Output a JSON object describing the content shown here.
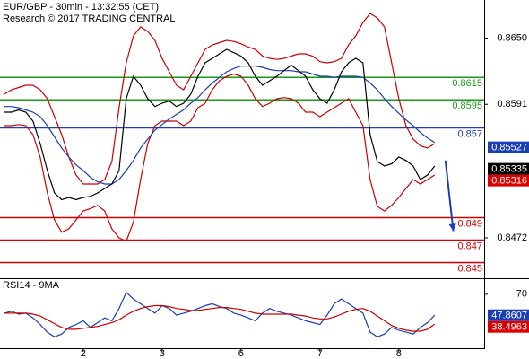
{
  "chart_data": [
    {
      "type": "line",
      "title": "EUR/GBP - 30min - 13:32:55 (CET)",
      "subtitle": "Research © 2017 TRADING CENTRAL",
      "x": [
        0,
        1,
        2,
        3,
        4,
        5,
        6,
        7,
        8,
        9,
        10,
        11,
        12,
        13,
        14,
        15,
        16,
        17,
        18,
        19,
        20,
        21,
        22,
        23,
        24,
        25,
        26,
        27,
        28,
        29,
        30,
        31,
        32,
        33,
        34,
        35,
        36,
        37,
        38,
        39,
        40,
        41,
        42,
        43,
        44,
        45,
        46,
        47,
        48,
        49,
        50,
        51,
        52,
        53,
        54,
        55,
        56,
        57,
        58,
        59,
        60
      ],
      "xlim": [
        -0.6,
        66.9
      ],
      "xticks": [
        {
          "value": 11,
          "label": "2"
        },
        {
          "value": 22,
          "label": "3"
        },
        {
          "value": 33,
          "label": "6"
        },
        {
          "value": 44,
          "label": "7"
        },
        {
          "value": 55,
          "label": "8"
        }
      ],
      "ylim": [
        0.8436,
        0.8684
      ],
      "yticks": [
        {
          "value": 0.865,
          "label": "0.8650"
        },
        0.8591,
        0.8472
      ],
      "series": [
        {
          "color": "#cc0000",
          "values": [
            0.86,
            0.8604,
            0.8606,
            0.8608,
            0.8608,
            0.8604,
            0.8596,
            0.858,
            0.8564,
            0.8544,
            0.8528,
            0.852,
            0.852,
            0.852,
            0.8524,
            0.854,
            0.8588,
            0.8628,
            0.8652,
            0.866,
            0.8656,
            0.8648,
            0.8632,
            0.862,
            0.8608,
            0.8604,
            0.8616,
            0.8628,
            0.864,
            0.8644,
            0.8646,
            0.8648,
            0.8647,
            0.8645,
            0.8642,
            0.864,
            0.8634,
            0.8632,
            0.8631,
            0.8632,
            0.8634,
            0.8636,
            0.8636,
            0.8634,
            0.8629,
            0.8628,
            0.8629,
            0.8632,
            0.8644,
            0.8652,
            0.8664,
            0.8672,
            0.8668,
            0.866,
            0.8628,
            0.8596,
            0.8572,
            0.856,
            0.8554,
            0.8552,
            0.8556
          ]
        },
        {
          "color": "#cc0000",
          "values": [
            0.8572,
            0.8572,
            0.8573,
            0.8572,
            0.8564,
            0.8544,
            0.8512,
            0.8488,
            0.8477,
            0.848,
            0.8488,
            0.8496,
            0.8498,
            0.8501,
            0.8496,
            0.848,
            0.8472,
            0.8469,
            0.8486,
            0.8524,
            0.8556,
            0.8572,
            0.8576,
            0.8576,
            0.8576,
            0.8572,
            0.8576,
            0.8588,
            0.8592,
            0.8604,
            0.8612,
            0.8616,
            0.8618,
            0.8616,
            0.8608,
            0.8596,
            0.8589,
            0.8592,
            0.8596,
            0.8597,
            0.8596,
            0.8592,
            0.8584,
            0.8584,
            0.858,
            0.8584,
            0.8588,
            0.8592,
            0.8596,
            0.8584,
            0.8572,
            0.8524,
            0.85,
            0.8496,
            0.8501,
            0.8508,
            0.8516,
            0.8524,
            0.852,
            0.8524,
            0.8528
          ]
        },
        {
          "color": "#1a3fb5",
          "values": [
            0.8589,
            0.8589,
            0.8588,
            0.8586,
            0.8584,
            0.858,
            0.8572,
            0.8562,
            0.8552,
            0.8544,
            0.8537,
            0.8532,
            0.8526,
            0.8522,
            0.852,
            0.852,
            0.8524,
            0.8532,
            0.8541,
            0.8552,
            0.856,
            0.8568,
            0.8573,
            0.8578,
            0.8582,
            0.8586,
            0.8592,
            0.8597,
            0.8604,
            0.861,
            0.8615,
            0.862,
            0.8623,
            0.8625,
            0.8625,
            0.8625,
            0.8624,
            0.8622,
            0.8621,
            0.8621,
            0.8621,
            0.862,
            0.862,
            0.8618,
            0.8616,
            0.8616,
            0.8615,
            0.8616,
            0.8616,
            0.8616,
            0.8615,
            0.861,
            0.8604,
            0.8596,
            0.8589,
            0.8583,
            0.8577,
            0.8572,
            0.8566,
            0.8561,
            0.8557
          ]
        },
        {
          "color": "#000000",
          "values": [
            0.8584,
            0.8584,
            0.8586,
            0.8584,
            0.8576,
            0.8556,
            0.8532,
            0.8512,
            0.8506,
            0.8508,
            0.8506,
            0.8508,
            0.8509,
            0.8512,
            0.8516,
            0.852,
            0.8532,
            0.8596,
            0.8616,
            0.8608,
            0.8596,
            0.8589,
            0.8592,
            0.8594,
            0.8589,
            0.8592,
            0.86,
            0.8616,
            0.8628,
            0.8632,
            0.8636,
            0.864,
            0.8637,
            0.8634,
            0.8628,
            0.8616,
            0.8608,
            0.8612,
            0.8616,
            0.8621,
            0.8626,
            0.8621,
            0.8616,
            0.8604,
            0.8596,
            0.8592,
            0.8604,
            0.862,
            0.8628,
            0.8632,
            0.8628,
            0.8564,
            0.854,
            0.8536,
            0.8538,
            0.8544,
            0.8541,
            0.8536,
            0.8524,
            0.8528,
            0.8536
          ]
        }
      ],
      "levels": [
        {
          "value": 0.8615,
          "color": "#1a9a1a"
        },
        {
          "value": 0.8595,
          "color": "#1a9a1a"
        },
        {
          "value": 0.857,
          "color": "#1a3fb5"
        },
        {
          "value": 0.849,
          "color": "#dd0000"
        },
        {
          "value": 0.847,
          "color": "#dd0000"
        },
        {
          "value": 0.845,
          "color": "#dd0000"
        }
      ],
      "badges": [
        {
          "value": 0.85527,
          "color": "#1a3fb5"
        },
        {
          "value": 0.85335,
          "color": "#000000"
        },
        {
          "value": 0.85316,
          "color": "#dd0000"
        }
      ],
      "arrow": {
        "color": "#1a3fb5",
        "x": [
          61.5,
          62.6
        ],
        "values": [
          0.8541,
          0.8478
        ]
      }
    },
    {
      "type": "line",
      "title": "RSI14 - 9MA",
      "ylim": [
        13,
        85
      ],
      "yticks": [
        70
      ],
      "series": [
        {
          "color": "#1a3fb5",
          "values": [
            50,
            52,
            49,
            50,
            45,
            38,
            30,
            25,
            28,
            35,
            38,
            42,
            35,
            40,
            45,
            42,
            55,
            72,
            65,
            60,
            55,
            50,
            58,
            55,
            48,
            50,
            52,
            55,
            58,
            60,
            57,
            55,
            50,
            48,
            45,
            42,
            50,
            55,
            52,
            50,
            48,
            45,
            42,
            40,
            38,
            48,
            60,
            65,
            60,
            55,
            50,
            30,
            25,
            28,
            35,
            32,
            30,
            28,
            35,
            40,
            47.8607
          ]
        },
        {
          "color": "#cc0000",
          "values": [
            50,
            50,
            50,
            50,
            49,
            47,
            43,
            39,
            35,
            33,
            33,
            34,
            35,
            36,
            38,
            40,
            43,
            48,
            52,
            55,
            57,
            58,
            58,
            57,
            55,
            54,
            53,
            53,
            54,
            55,
            56,
            56,
            55,
            54,
            52,
            50,
            49,
            49,
            49,
            49,
            49,
            48,
            47,
            45,
            44,
            44,
            46,
            49,
            52,
            54,
            55,
            52,
            47,
            42,
            37,
            34,
            32,
            31,
            31,
            33,
            38.4963
          ]
        }
      ],
      "badges": [
        {
          "value": 47.8607,
          "color": "#1a3fb5"
        },
        {
          "value": 38.4963,
          "color": "#dd0000"
        }
      ]
    }
  ]
}
